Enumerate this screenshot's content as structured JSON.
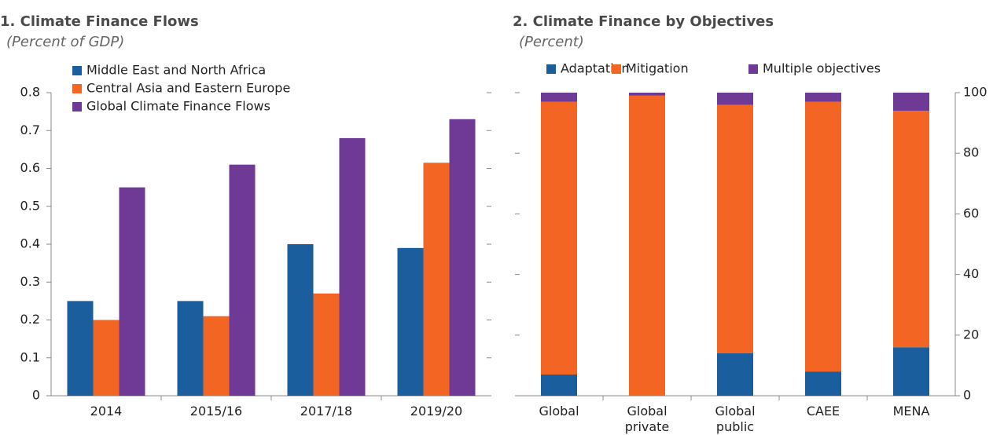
{
  "chart_data": [
    {
      "type": "bar",
      "title": "1. Climate Finance Flows",
      "subtitle": "(Percent of GDP)",
      "categories": [
        "2014",
        "2015/16",
        "2017/18",
        "2019/20"
      ],
      "series": [
        {
          "name": "Middle East and North Africa",
          "color": "#1a5e9e",
          "values": [
            0.25,
            0.25,
            0.4,
            0.39
          ]
        },
        {
          "name": "Central Asia and Eastern Europe",
          "color": "#f26522",
          "values": [
            0.2,
            0.21,
            0.27,
            0.615
          ]
        },
        {
          "name": "Global Climate Finance Flows",
          "color": "#6f3a96",
          "values": [
            0.55,
            0.61,
            0.68,
            0.73
          ]
        }
      ],
      "ylim": [
        0,
        0.8
      ],
      "yticks": [
        0,
        0.1,
        0.2,
        0.3,
        0.4,
        0.5,
        0.6,
        0.7,
        0.8
      ],
      "legend": "top-left"
    },
    {
      "type": "stacked-bar",
      "title": "2. Climate Finance by Objectives",
      "subtitle": "(Percent)",
      "categories": [
        "Global",
        "Global private",
        "Global public",
        "CAEE",
        "MENA"
      ],
      "series": [
        {
          "name": "Adaptation",
          "color": "#1a5e9e",
          "values": [
            7,
            0,
            14,
            8,
            16
          ]
        },
        {
          "name": "Mitigation",
          "color": "#f26522",
          "values": [
            90,
            99,
            82,
            89,
            78
          ]
        },
        {
          "name": "Multiple objectives",
          "color": "#6f3a96",
          "values": [
            3,
            1,
            4,
            3,
            6
          ]
        }
      ],
      "ylim": [
        0,
        100
      ],
      "yticks": [
        0,
        20,
        40,
        60,
        80,
        100
      ],
      "yaxis": "right",
      "legend": "top"
    }
  ]
}
